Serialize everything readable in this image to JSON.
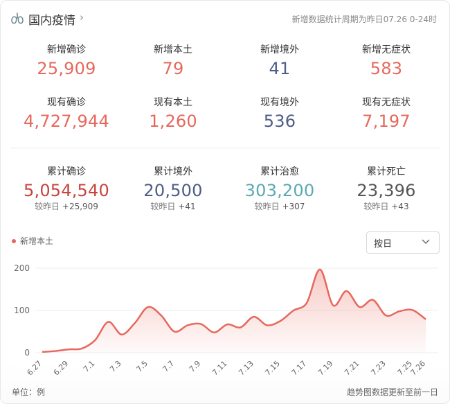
{
  "header": {
    "title": "国内疫情",
    "chevron": "›",
    "period": "新增数据统计周期为昨日07.26 0-24时"
  },
  "row1": [
    {
      "label": "新增确诊",
      "value": "25,909"
    },
    {
      "label": "新增本土",
      "value": "79"
    },
    {
      "label": "新增境外",
      "value": "41"
    },
    {
      "label": "新增无症状",
      "value": "583"
    }
  ],
  "row2": [
    {
      "label": "现有确诊",
      "value": "4,727,944"
    },
    {
      "label": "现有本土",
      "value": "1,260"
    },
    {
      "label": "现有境外",
      "value": "536"
    },
    {
      "label": "现有无症状",
      "value": "7,197"
    }
  ],
  "row3": [
    {
      "label": "累计确诊",
      "value": "5,054,540",
      "sub_prefix": "较昨日",
      "sub_delta": "+25,909"
    },
    {
      "label": "累计境外",
      "value": "20,500",
      "sub_prefix": "较昨日",
      "sub_delta": "+41"
    },
    {
      "label": "累计治愈",
      "value": "303,200",
      "sub_prefix": "较昨日",
      "sub_delta": "+307"
    },
    {
      "label": "累计死亡",
      "value": "23,396",
      "sub_prefix": "较昨日",
      "sub_delta": "+43"
    }
  ],
  "colors": {
    "accent_red": "#e6685c",
    "dark_red": "#c8443d",
    "navy": "#4e5b86",
    "teal": "#5aa9b2"
  },
  "select": {
    "value": "按日"
  },
  "footer": {
    "unit": "单位：例",
    "note": "趋势图数据更新至前一日"
  },
  "chart_data": {
    "type": "area",
    "series": [
      {
        "name": "新增本土",
        "color": "#e6685c"
      }
    ],
    "ylim": [
      0,
      200
    ],
    "yticks": [
      0,
      100,
      200
    ],
    "xtick_labels": [
      "6.27",
      "6.29",
      "7.1",
      "7.3",
      "7.5",
      "7.7",
      "7.9",
      "7.11",
      "7.13",
      "7.15",
      "7.17",
      "7.19",
      "7.21",
      "7.23",
      "7.25",
      "7.26"
    ],
    "x": [
      "6.27",
      "6.28",
      "6.29",
      "6.30",
      "7.1",
      "7.2",
      "7.3",
      "7.4",
      "7.5",
      "7.6",
      "7.7",
      "7.8",
      "7.9",
      "7.10",
      "7.11",
      "7.12",
      "7.13",
      "7.14",
      "7.15",
      "7.16",
      "7.17",
      "7.18",
      "7.19",
      "7.20",
      "7.21",
      "7.22",
      "7.23",
      "7.24",
      "7.25",
      "7.26"
    ],
    "values": [
      2,
      4,
      8,
      10,
      30,
      73,
      43,
      70,
      108,
      88,
      50,
      65,
      68,
      48,
      67,
      60,
      85,
      65,
      75,
      100,
      118,
      197,
      112,
      146,
      108,
      125,
      88,
      98,
      101,
      79
    ]
  }
}
